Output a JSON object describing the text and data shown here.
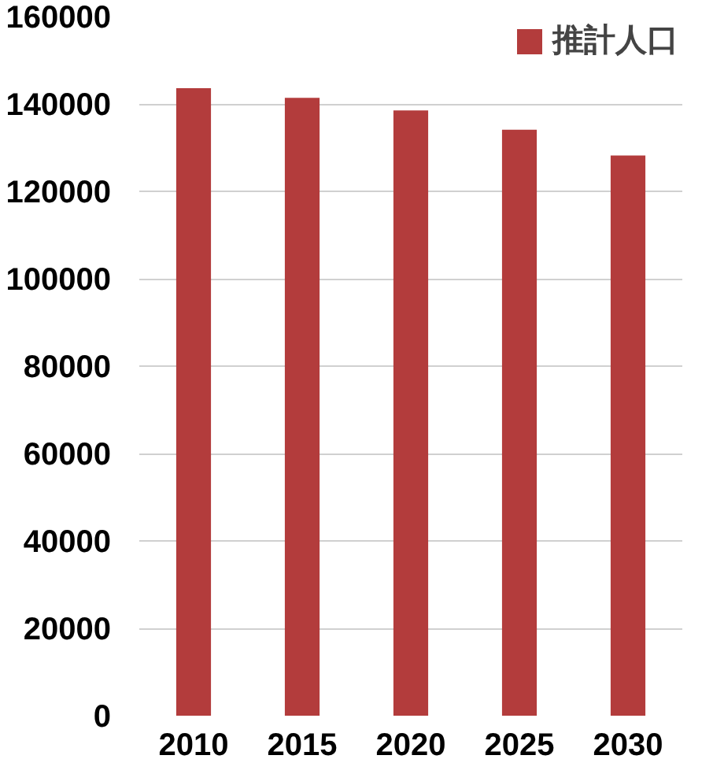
{
  "chart_data": {
    "type": "bar",
    "categories": [
      "2010",
      "2015",
      "2020",
      "2025",
      "2030"
    ],
    "series": [
      {
        "name": "推計人口",
        "color": "#b33c3c",
        "values": [
          143600,
          141400,
          138500,
          134100,
          128200
        ]
      }
    ],
    "ylim": [
      0,
      160000
    ],
    "yticks": [
      0,
      20000,
      40000,
      60000,
      80000,
      100000,
      120000,
      140000,
      160000
    ],
    "grid": "y",
    "legend": "top right"
  }
}
